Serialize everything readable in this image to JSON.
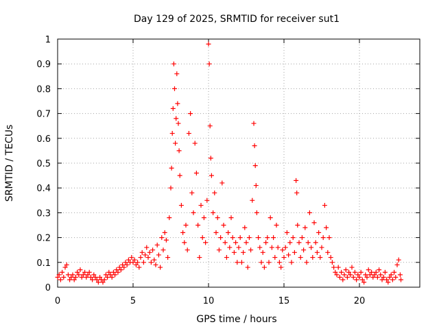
{
  "chart_data": {
    "type": "scatter",
    "title": "Day 129 of 2025, SRMTID for receiver sut1",
    "xlabel": "GPS time / hours",
    "ylabel": "SRMTID / TECUs",
    "xlim": [
      0,
      24
    ],
    "ylim": [
      0,
      1
    ],
    "xticks": [
      0,
      5,
      10,
      15,
      20
    ],
    "xtick_labels": [
      "0",
      "5",
      "10",
      "15",
      "20"
    ],
    "yticks": [
      0,
      0.1,
      0.2,
      0.3,
      0.4,
      0.5,
      0.6,
      0.7,
      0.8,
      0.9,
      1
    ],
    "ytick_labels": [
      "0",
      "0.1",
      "0.2",
      "0.3",
      "0.4",
      "0.5",
      "0.6",
      "0.7",
      "0.8",
      "0.9",
      "1"
    ],
    "grid": true,
    "marker": "+",
    "color": "#ff0000",
    "series": [
      {
        "name": "sut1",
        "points": [
          [
            0.0,
            0.04
          ],
          [
            0.1,
            0.05
          ],
          [
            0.2,
            0.03
          ],
          [
            0.3,
            0.06
          ],
          [
            0.4,
            0.04
          ],
          [
            0.5,
            0.08
          ],
          [
            0.6,
            0.09
          ],
          [
            0.7,
            0.05
          ],
          [
            0.8,
            0.03
          ],
          [
            0.9,
            0.04
          ],
          [
            1.0,
            0.05
          ],
          [
            1.1,
            0.03
          ],
          [
            1.2,
            0.04
          ],
          [
            1.3,
            0.06
          ],
          [
            1.4,
            0.05
          ],
          [
            1.5,
            0.07
          ],
          [
            1.6,
            0.04
          ],
          [
            1.7,
            0.05
          ],
          [
            1.8,
            0.06
          ],
          [
            1.9,
            0.04
          ],
          [
            2.0,
            0.05
          ],
          [
            2.1,
            0.06
          ],
          [
            2.2,
            0.04
          ],
          [
            2.3,
            0.03
          ],
          [
            2.4,
            0.05
          ],
          [
            2.5,
            0.04
          ],
          [
            2.6,
            0.03
          ],
          [
            2.7,
            0.02
          ],
          [
            2.8,
            0.04
          ],
          [
            2.9,
            0.03
          ],
          [
            3.0,
            0.02
          ],
          [
            3.1,
            0.03
          ],
          [
            3.2,
            0.05
          ],
          [
            3.3,
            0.04
          ],
          [
            3.4,
            0.06
          ],
          [
            3.5,
            0.05
          ],
          [
            3.6,
            0.04
          ],
          [
            3.7,
            0.06
          ],
          [
            3.8,
            0.05
          ],
          [
            3.9,
            0.07
          ],
          [
            4.0,
            0.06
          ],
          [
            4.1,
            0.08
          ],
          [
            4.2,
            0.07
          ],
          [
            4.3,
            0.09
          ],
          [
            4.4,
            0.08
          ],
          [
            4.5,
            0.1
          ],
          [
            4.6,
            0.09
          ],
          [
            4.7,
            0.11
          ],
          [
            4.8,
            0.1
          ],
          [
            4.9,
            0.12
          ],
          [
            5.0,
            0.1
          ],
          [
            5.1,
            0.11
          ],
          [
            5.2,
            0.09
          ],
          [
            5.3,
            0.1
          ],
          [
            5.4,
            0.08
          ],
          [
            5.5,
            0.12
          ],
          [
            5.6,
            0.14
          ],
          [
            5.7,
            0.1
          ],
          [
            5.8,
            0.13
          ],
          [
            5.9,
            0.16
          ],
          [
            6.0,
            0.12
          ],
          [
            6.1,
            0.14
          ],
          [
            6.2,
            0.1
          ],
          [
            6.3,
            0.15
          ],
          [
            6.4,
            0.11
          ],
          [
            6.5,
            0.09
          ],
          [
            6.6,
            0.17
          ],
          [
            6.7,
            0.13
          ],
          [
            6.8,
            0.08
          ],
          [
            6.9,
            0.2
          ],
          [
            7.0,
            0.15
          ],
          [
            7.1,
            0.22
          ],
          [
            7.2,
            0.19
          ],
          [
            7.3,
            0.12
          ],
          [
            7.4,
            0.28
          ],
          [
            7.5,
            0.4
          ],
          [
            7.55,
            0.48
          ],
          [
            7.6,
            0.62
          ],
          [
            7.65,
            0.72
          ],
          [
            7.7,
            0.9
          ],
          [
            7.75,
            0.8
          ],
          [
            7.8,
            0.58
          ],
          [
            7.85,
            0.68
          ],
          [
            7.9,
            0.86
          ],
          [
            7.95,
            0.74
          ],
          [
            8.0,
            0.66
          ],
          [
            8.05,
            0.55
          ],
          [
            8.1,
            0.45
          ],
          [
            8.2,
            0.33
          ],
          [
            8.3,
            0.22
          ],
          [
            8.4,
            0.18
          ],
          [
            8.5,
            0.25
          ],
          [
            8.6,
            0.15
          ],
          [
            8.7,
            0.62
          ],
          [
            8.8,
            0.7
          ],
          [
            8.9,
            0.38
          ],
          [
            9.0,
            0.3
          ],
          [
            9.1,
            0.58
          ],
          [
            9.2,
            0.46
          ],
          [
            9.3,
            0.25
          ],
          [
            9.4,
            0.12
          ],
          [
            9.5,
            0.33
          ],
          [
            9.6,
            0.2
          ],
          [
            9.7,
            0.28
          ],
          [
            9.8,
            0.18
          ],
          [
            9.9,
            0.35
          ],
          [
            10.0,
            0.98
          ],
          [
            10.05,
            0.9
          ],
          [
            10.1,
            0.65
          ],
          [
            10.15,
            0.52
          ],
          [
            10.2,
            0.45
          ],
          [
            10.3,
            0.3
          ],
          [
            10.4,
            0.38
          ],
          [
            10.5,
            0.22
          ],
          [
            10.6,
            0.28
          ],
          [
            10.7,
            0.15
          ],
          [
            10.8,
            0.2
          ],
          [
            10.9,
            0.42
          ],
          [
            11.0,
            0.25
          ],
          [
            11.1,
            0.18
          ],
          [
            11.2,
            0.12
          ],
          [
            11.3,
            0.22
          ],
          [
            11.4,
            0.16
          ],
          [
            11.5,
            0.28
          ],
          [
            11.6,
            0.2
          ],
          [
            11.7,
            0.14
          ],
          [
            11.8,
            0.18
          ],
          [
            11.9,
            0.1
          ],
          [
            12.0,
            0.16
          ],
          [
            12.1,
            0.2
          ],
          [
            12.2,
            0.1
          ],
          [
            12.3,
            0.14
          ],
          [
            12.4,
            0.24
          ],
          [
            12.5,
            0.18
          ],
          [
            12.6,
            0.08
          ],
          [
            12.7,
            0.2
          ],
          [
            12.8,
            0.15
          ],
          [
            12.9,
            0.35
          ],
          [
            13.0,
            0.66
          ],
          [
            13.05,
            0.57
          ],
          [
            13.1,
            0.49
          ],
          [
            13.15,
            0.41
          ],
          [
            13.2,
            0.3
          ],
          [
            13.3,
            0.2
          ],
          [
            13.4,
            0.16
          ],
          [
            13.5,
            0.1
          ],
          [
            13.6,
            0.14
          ],
          [
            13.7,
            0.08
          ],
          [
            13.8,
            0.18
          ],
          [
            13.9,
            0.2
          ],
          [
            14.0,
            0.1
          ],
          [
            14.1,
            0.28
          ],
          [
            14.2,
            0.16
          ],
          [
            14.3,
            0.2
          ],
          [
            14.4,
            0.12
          ],
          [
            14.5,
            0.25
          ],
          [
            14.6,
            0.16
          ],
          [
            14.7,
            0.1
          ],
          [
            14.8,
            0.08
          ],
          [
            14.9,
            0.15
          ],
          [
            15.0,
            0.12
          ],
          [
            15.1,
            0.16
          ],
          [
            15.2,
            0.22
          ],
          [
            15.3,
            0.13
          ],
          [
            15.4,
            0.18
          ],
          [
            15.5,
            0.1
          ],
          [
            15.6,
            0.2
          ],
          [
            15.7,
            0.14
          ],
          [
            15.8,
            0.43
          ],
          [
            15.85,
            0.38
          ],
          [
            15.9,
            0.25
          ],
          [
            16.0,
            0.18
          ],
          [
            16.1,
            0.12
          ],
          [
            16.2,
            0.2
          ],
          [
            16.3,
            0.15
          ],
          [
            16.4,
            0.24
          ],
          [
            16.5,
            0.1
          ],
          [
            16.6,
            0.18
          ],
          [
            16.7,
            0.3
          ],
          [
            16.8,
            0.16
          ],
          [
            16.9,
            0.12
          ],
          [
            17.0,
            0.26
          ],
          [
            17.1,
            0.18
          ],
          [
            17.2,
            0.14
          ],
          [
            17.3,
            0.22
          ],
          [
            17.4,
            0.12
          ],
          [
            17.5,
            0.16
          ],
          [
            17.6,
            0.2
          ],
          [
            17.7,
            0.33
          ],
          [
            17.8,
            0.24
          ],
          [
            17.9,
            0.14
          ],
          [
            18.0,
            0.2
          ],
          [
            18.1,
            0.12
          ],
          [
            18.2,
            0.1
          ],
          [
            18.3,
            0.08
          ],
          [
            18.4,
            0.06
          ],
          [
            18.5,
            0.05
          ],
          [
            18.6,
            0.08
          ],
          [
            18.7,
            0.04
          ],
          [
            18.8,
            0.06
          ],
          [
            18.9,
            0.03
          ],
          [
            19.0,
            0.05
          ],
          [
            19.1,
            0.07
          ],
          [
            19.2,
            0.04
          ],
          [
            19.3,
            0.06
          ],
          [
            19.4,
            0.05
          ],
          [
            19.5,
            0.08
          ],
          [
            19.6,
            0.04
          ],
          [
            19.7,
            0.06
          ],
          [
            19.8,
            0.03
          ],
          [
            19.9,
            0.05
          ],
          [
            20.0,
            0.04
          ],
          [
            20.1,
            0.06
          ],
          [
            20.2,
            0.03
          ],
          [
            20.3,
            0.02
          ],
          [
            20.4,
            0.05
          ],
          [
            20.5,
            0.04
          ],
          [
            20.6,
            0.07
          ],
          [
            20.7,
            0.05
          ],
          [
            20.8,
            0.06
          ],
          [
            20.9,
            0.04
          ],
          [
            21.0,
            0.05
          ],
          [
            21.1,
            0.06
          ],
          [
            21.2,
            0.04
          ],
          [
            21.3,
            0.07
          ],
          [
            21.4,
            0.05
          ],
          [
            21.5,
            0.03
          ],
          [
            21.6,
            0.04
          ],
          [
            21.7,
            0.06
          ],
          [
            21.8,
            0.03
          ],
          [
            21.9,
            0.02
          ],
          [
            22.0,
            0.04
          ],
          [
            22.1,
            0.05
          ],
          [
            22.2,
            0.03
          ],
          [
            22.3,
            0.06
          ],
          [
            22.4,
            0.04
          ],
          [
            22.5,
            0.09
          ],
          [
            22.6,
            0.11
          ],
          [
            22.7,
            0.05
          ],
          [
            22.75,
            0.03
          ]
        ]
      }
    ]
  }
}
